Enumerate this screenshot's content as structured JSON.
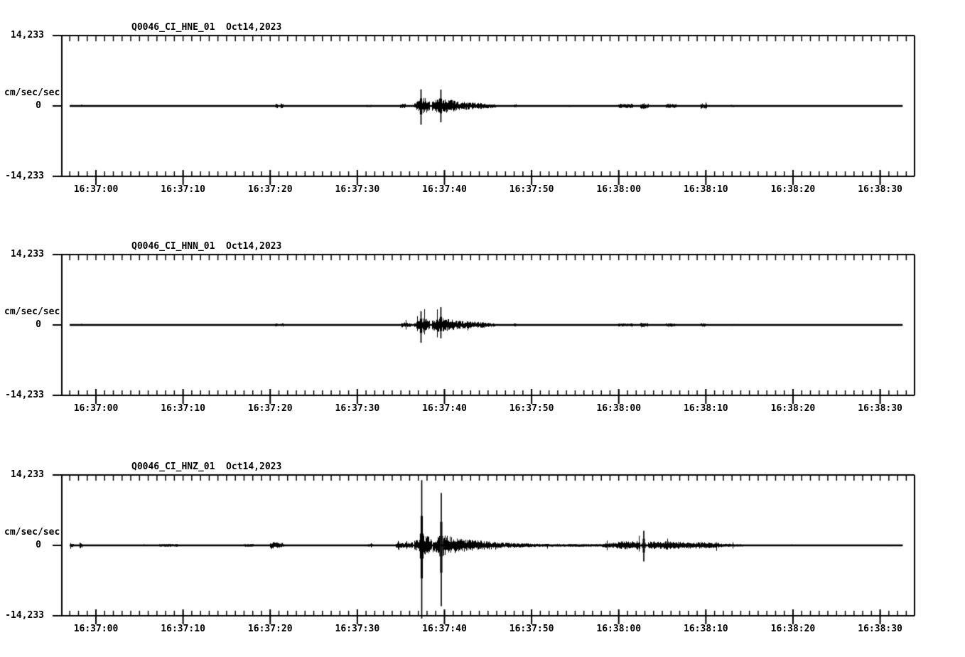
{
  "page": {
    "background": "#ffffff",
    "ink": "#000000"
  },
  "chart_data": [
    {
      "type": "line",
      "title": "Q0046_CI_HNE_01  Oct14,2023",
      "station": "Q0046",
      "network": "CI",
      "channel": "HNE",
      "location": "01",
      "date": "Oct14,2023",
      "ylabel": "cm/sec/sec",
      "y_top_label": "14,233",
      "y_zero_label": "0",
      "y_bottom_label": "-14,233",
      "ylim": [
        -14.233,
        14.233
      ],
      "xticks": [
        "16:37:00",
        "16:37:10",
        "16:37:20",
        "16:37:30",
        "16:37:40",
        "16:37:50",
        "16:38:00",
        "16:38:10",
        "16:38:20",
        "16:38:30"
      ],
      "x_minor_interval_s": 1,
      "x_major_interval_s": 10,
      "grid": false,
      "legend": false,
      "seed": 11,
      "base_noise": 0.05,
      "segments": [
        [
          -1.75,
          -1.55,
          0.3,
          0.3
        ],
        [
          20.55,
          20.85,
          0.5,
          0.5
        ],
        [
          21.2,
          21.5,
          0.5,
          0.5
        ],
        [
          31.0,
          31.6,
          0.22,
          0.22
        ],
        [
          34.9,
          35.5,
          0.45,
          0.45
        ],
        [
          36.5,
          37.15,
          0.55,
          1.3
        ],
        [
          37.45,
          38.3,
          2.1,
          0.9
        ],
        [
          38.5,
          39.45,
          1.0,
          1.9
        ],
        [
          39.75,
          41.5,
          1.7,
          0.9
        ],
        [
          41.5,
          44.5,
          0.9,
          0.6
        ],
        [
          44.5,
          45.9,
          0.6,
          0.35
        ],
        [
          47.9,
          48.2,
          0.35,
          0.35
        ],
        [
          54.2,
          54.5,
          0.2,
          0.2
        ],
        [
          59.9,
          61.6,
          0.45,
          0.45
        ],
        [
          62.4,
          63.4,
          0.65,
          0.5
        ],
        [
          65.4,
          66.6,
          0.5,
          0.4
        ],
        [
          69.4,
          70.1,
          0.55,
          0.4
        ],
        [
          72.8,
          73.2,
          0.25,
          0.25
        ]
      ],
      "spikes": [
        [
          37.31,
          3.35,
          3.8
        ],
        [
          39.59,
          3.3,
          3.3
        ]
      ]
    },
    {
      "type": "line",
      "title": "Q0046_CI_HNN_01  Oct14,2023",
      "station": "Q0046",
      "network": "CI",
      "channel": "HNN",
      "location": "01",
      "date": "Oct14,2023",
      "ylabel": "cm/sec/sec",
      "y_top_label": "14,233",
      "y_zero_label": "0",
      "y_bottom_label": "-14,233",
      "ylim": [
        -14.233,
        14.233
      ],
      "xticks": [
        "16:37:00",
        "16:37:10",
        "16:37:20",
        "16:37:30",
        "16:37:40",
        "16:37:50",
        "16:38:00",
        "16:38:10",
        "16:38:20",
        "16:38:30"
      ],
      "x_minor_interval_s": 1,
      "x_major_interval_s": 10,
      "grid": false,
      "legend": false,
      "seed": 22,
      "base_noise": 0.05,
      "segments": [
        [
          -1.75,
          -1.55,
          0.25,
          0.25
        ],
        [
          20.55,
          20.85,
          0.4,
          0.4
        ],
        [
          21.2,
          21.5,
          0.4,
          0.4
        ],
        [
          35.0,
          36.2,
          0.5,
          0.5
        ],
        [
          36.5,
          37.15,
          0.5,
          1.1
        ],
        [
          37.45,
          38.3,
          1.8,
          0.85
        ],
        [
          38.5,
          39.45,
          0.95,
          1.7
        ],
        [
          39.75,
          41.5,
          1.5,
          0.85
        ],
        [
          41.5,
          44.5,
          0.85,
          0.55
        ],
        [
          44.5,
          45.8,
          0.55,
          0.3
        ],
        [
          47.95,
          48.25,
          0.35,
          0.35
        ],
        [
          59.9,
          61.6,
          0.32,
          0.32
        ],
        [
          62.4,
          63.3,
          0.5,
          0.42
        ],
        [
          65.4,
          66.5,
          0.38,
          0.32
        ],
        [
          69.4,
          70.0,
          0.42,
          0.35
        ],
        [
          72.8,
          73.2,
          0.2,
          0.2
        ]
      ],
      "spikes": [
        [
          37.31,
          2.8,
          3.6
        ],
        [
          39.59,
          3.6,
          2.7
        ]
      ]
    },
    {
      "type": "line",
      "title": "Q0046_CI_HNZ_01  Oct14,2023",
      "station": "Q0046",
      "network": "CI",
      "channel": "HNZ",
      "location": "01",
      "date": "Oct14,2023",
      "ylabel": "cm/sec/sec",
      "y_top_label": "14,233",
      "y_zero_label": "0",
      "y_bottom_label": "-14,233",
      "ylim": [
        -14.233,
        14.233
      ],
      "xticks": [
        "16:37:00",
        "16:37:10",
        "16:37:20",
        "16:37:30",
        "16:37:40",
        "16:37:50",
        "16:38:00",
        "16:38:10",
        "16:38:20",
        "16:38:30"
      ],
      "x_minor_interval_s": 1,
      "x_major_interval_s": 10,
      "grid": false,
      "legend": false,
      "seed": 33,
      "base_noise": 0.1,
      "segments": [
        [
          -2.95,
          -2.6,
          0.35,
          0.35
        ],
        [
          -1.95,
          -1.6,
          0.6,
          0.6
        ],
        [
          7.2,
          9.3,
          0.28,
          0.28
        ],
        [
          16.9,
          18.1,
          0.28,
          0.28
        ],
        [
          19.9,
          21.6,
          0.75,
          0.5
        ],
        [
          31.2,
          31.8,
          0.32,
          0.32
        ],
        [
          34.4,
          36.3,
          0.5,
          0.65
        ],
        [
          36.5,
          37.2,
          0.9,
          1.7
        ],
        [
          37.55,
          38.5,
          2.3,
          1.5
        ],
        [
          38.6,
          39.45,
          1.5,
          1.9
        ],
        [
          39.8,
          42.0,
          2.1,
          1.3
        ],
        [
          42.0,
          45.0,
          1.3,
          0.85
        ],
        [
          45.0,
          46.6,
          0.85,
          0.6
        ],
        [
          46.6,
          50.0,
          0.55,
          0.4
        ],
        [
          50.0,
          54.0,
          0.35,
          0.28
        ],
        [
          54.0,
          58.0,
          0.3,
          0.25
        ],
        [
          58.0,
          59.8,
          0.45,
          0.65
        ],
        [
          59.8,
          62.4,
          0.8,
          0.9
        ],
        [
          63.3,
          64.9,
          0.85,
          0.7
        ],
        [
          64.9,
          67.4,
          0.95,
          0.7
        ],
        [
          67.4,
          69.0,
          0.6,
          0.75
        ],
        [
          69.0,
          71.6,
          0.75,
          0.5
        ],
        [
          71.6,
          74.2,
          0.4,
          0.22
        ]
      ],
      "spikes": [
        [
          37.39,
          13.2,
          14.8
        ],
        [
          39.63,
          10.6,
          12.3
        ],
        [
          62.88,
          2.95,
          3.25
        ]
      ]
    }
  ]
}
